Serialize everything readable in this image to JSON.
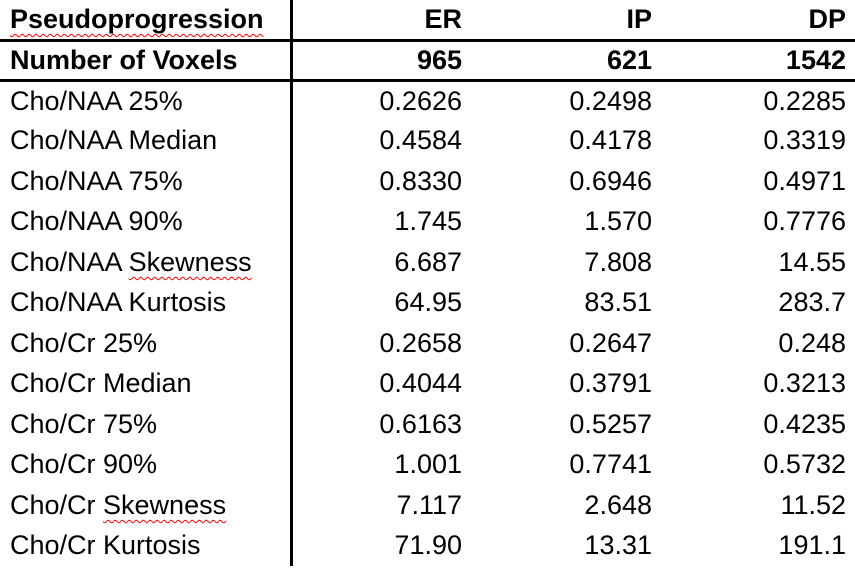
{
  "colors": {
    "text": "#000000",
    "border": "#000000",
    "spellcheck_underline": "#ff0000"
  },
  "chart_data": {
    "type": "table",
    "title": "Pseudoprogression",
    "columns": [
      "ER",
      "IP",
      "DP"
    ],
    "rows": [
      {
        "label": "Number of Voxels",
        "values": [
          "965",
          "621",
          "1542"
        ],
        "bold": true
      },
      {
        "label": "Cho/NAA 25%",
        "values": [
          "0.2626",
          "0.2498",
          "0.2285"
        ]
      },
      {
        "label": "Cho/NAA Median",
        "values": [
          "0.4584",
          "0.4178",
          "0.3319"
        ]
      },
      {
        "label": "Cho/NAA 75%",
        "values": [
          "0.8330",
          "0.6946",
          "0.4971"
        ]
      },
      {
        "label": "Cho/NAA 90%",
        "values": [
          "1.745",
          "1.570",
          "0.7776"
        ]
      },
      {
        "label": "Cho/NAA Skewness",
        "values": [
          "6.687",
          "7.808",
          "14.55"
        ],
        "squiggle_word": "Skewness"
      },
      {
        "label": "Cho/NAA Kurtosis",
        "values": [
          "64.95",
          "83.51",
          "283.7"
        ]
      },
      {
        "label": "Cho/Cr 25%",
        "values": [
          "0.2658",
          "0.2647",
          "0.248"
        ]
      },
      {
        "label": "Cho/Cr Median",
        "values": [
          "0.4044",
          "0.3791",
          "0.3213"
        ]
      },
      {
        "label": "Cho/Cr 75%",
        "values": [
          "0.6163",
          "0.5257",
          "0.4235"
        ]
      },
      {
        "label": "Cho/Cr 90%",
        "values": [
          "1.001",
          "0.7741",
          "0.5732"
        ]
      },
      {
        "label": "Cho/Cr Skewness",
        "values": [
          "7.117",
          "2.648",
          "11.52"
        ],
        "squiggle_word": "Skewness"
      },
      {
        "label": "Cho/Cr Kurtosis",
        "values": [
          "71.90",
          "13.31",
          "191.1"
        ]
      }
    ]
  }
}
